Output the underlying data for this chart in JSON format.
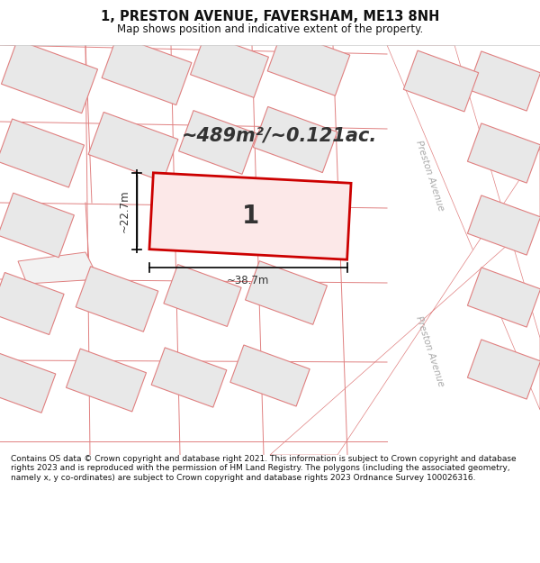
{
  "title": "1, PRESTON AVENUE, FAVERSHAM, ME13 8NH",
  "subtitle": "Map shows position and indicative extent of the property.",
  "area_text": "~489m²/~0.121ac.",
  "label": "1",
  "dim_width": "~38.7m",
  "dim_height": "~22.7m",
  "footer": "Contains OS data © Crown copyright and database right 2021. This information is subject to Crown copyright and database rights 2023 and is reproduced with the permission of HM Land Registry. The polygons (including the associated geometry, namely x, y co-ordinates) are subject to Crown copyright and database rights 2023 Ordnance Survey 100026316.",
  "bg_color": "#ffffff",
  "map_bg": "#f2f2f2",
  "building_fill": "#e8e8e8",
  "building_stroke": "#e08080",
  "road_fill": "#ffffff",
  "highlight_color": "#cc0000",
  "highlight_fill": "#fce8e8",
  "road_label": "Preston Avenue",
  "road_label_color": "#aaaaaa",
  "dim_color": "#333333",
  "label_color": "#333333"
}
